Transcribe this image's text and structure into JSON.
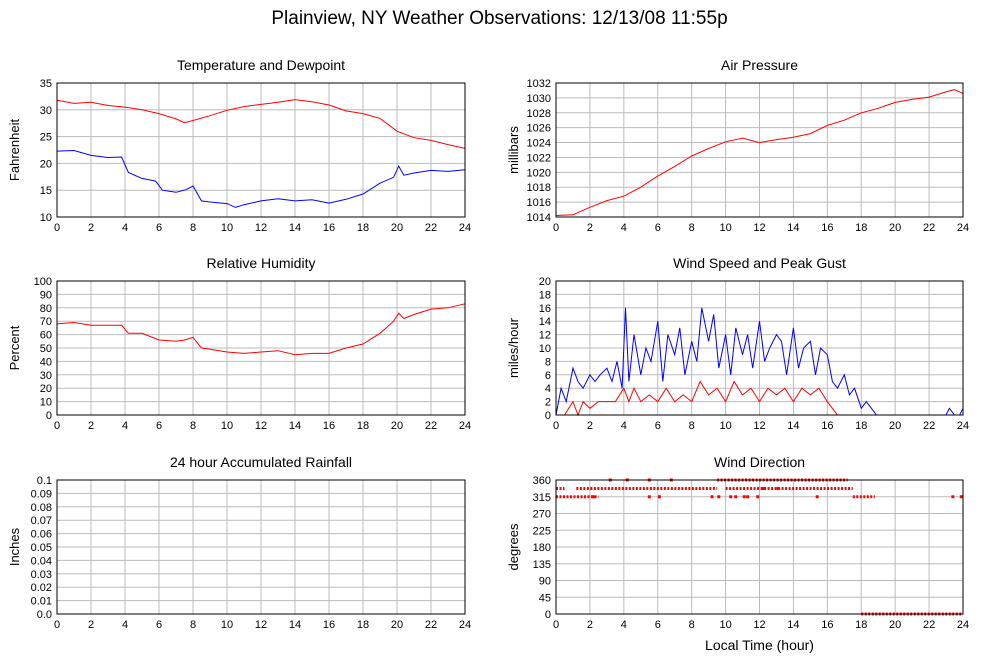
{
  "page": {
    "title": "Plainview, NY Weather Observations: 12/13/08 11:55p",
    "xlabel": "Local Time (hour)"
  },
  "chart_data": [
    {
      "id": "temp",
      "type": "line",
      "title": "Temperature and Dewpoint",
      "ylabel": "Fahrenheit",
      "xlim": [
        0,
        24
      ],
      "ylim": [
        10,
        35
      ],
      "xticks": [
        0,
        2,
        4,
        6,
        8,
        10,
        12,
        14,
        16,
        18,
        20,
        22,
        24
      ],
      "yticks": [
        10,
        15,
        20,
        25,
        30,
        35
      ],
      "ytick_labels": [
        "10",
        "15",
        "20",
        "25",
        "30",
        "35"
      ],
      "series": [
        {
          "color": "#ff0000",
          "x": [
            0,
            1,
            2,
            3,
            4,
            5,
            6,
            7,
            7.5,
            8,
            9,
            10,
            11,
            12,
            13,
            14,
            15,
            16,
            17,
            18,
            19,
            20,
            21,
            22,
            23,
            24
          ],
          "y": [
            31.8,
            31.2,
            31.4,
            30.8,
            30.5,
            30,
            29.3,
            28.3,
            27.6,
            28,
            28.9,
            29.9,
            30.6,
            31,
            31.4,
            31.9,
            31.5,
            30.9,
            29.8,
            29.3,
            28.4,
            26,
            24.8,
            24.3,
            23.5,
            22.8
          ]
        },
        {
          "color": "#0000ff",
          "x": [
            0,
            1,
            2,
            3,
            3.8,
            4.2,
            5,
            5.8,
            6.2,
            7,
            7.6,
            8,
            8.5,
            9,
            10,
            10.5,
            11,
            12,
            13,
            14,
            15,
            16,
            17,
            18,
            19,
            19.8,
            20.1,
            20.4,
            21,
            22,
            23,
            24
          ],
          "y": [
            22.3,
            22.4,
            21.5,
            21.1,
            21.2,
            18.3,
            17.2,
            16.7,
            15,
            14.6,
            15.1,
            15.8,
            13,
            12.8,
            12.5,
            11.8,
            12.3,
            13,
            13.4,
            13,
            13.2,
            12.6,
            13.3,
            14.3,
            16.3,
            17.4,
            19.5,
            17.8,
            18.2,
            18.7,
            18.5,
            18.8
          ]
        }
      ]
    },
    {
      "id": "pressure",
      "type": "line",
      "title": "Air Pressure",
      "ylabel": "millibars",
      "xlim": [
        0,
        24
      ],
      "ylim": [
        1014,
        1032
      ],
      "xticks": [
        0,
        2,
        4,
        6,
        8,
        10,
        12,
        14,
        16,
        18,
        20,
        22,
        24
      ],
      "yticks": [
        1014,
        1016,
        1018,
        1020,
        1022,
        1024,
        1026,
        1028,
        1030,
        1032
      ],
      "ytick_labels": [
        "1014",
        "1016",
        "1018",
        "1020",
        "1022",
        "1024",
        "1026",
        "1028",
        "1030",
        "1032"
      ],
      "series": [
        {
          "color": "#ff0000",
          "x": [
            0,
            1,
            2,
            3,
            4,
            5,
            6,
            7,
            8,
            9,
            10,
            11,
            12,
            13,
            14,
            15,
            16,
            17,
            18,
            19,
            20,
            21,
            22,
            23,
            23.5,
            24
          ],
          "y": [
            1014.2,
            1014.3,
            1015.3,
            1016.2,
            1016.8,
            1018,
            1019.5,
            1020.8,
            1022.2,
            1023.2,
            1024.1,
            1024.6,
            1024,
            1024.4,
            1024.7,
            1025.2,
            1026.3,
            1027,
            1028,
            1028.6,
            1029.4,
            1029.8,
            1030.1,
            1030.8,
            1031.1,
            1030.6
          ]
        }
      ]
    },
    {
      "id": "humidity",
      "type": "line",
      "title": "Relative Humidity",
      "ylabel": "Percent",
      "xlim": [
        0,
        24
      ],
      "ylim": [
        0,
        100
      ],
      "xticks": [
        0,
        2,
        4,
        6,
        8,
        10,
        12,
        14,
        16,
        18,
        20,
        22,
        24
      ],
      "yticks": [
        0,
        10,
        20,
        30,
        40,
        50,
        60,
        70,
        80,
        90,
        100
      ],
      "ytick_labels": [
        "0",
        "10",
        "20",
        "30",
        "40",
        "50",
        "60",
        "70",
        "80",
        "90",
        "100"
      ],
      "series": [
        {
          "color": "#ff0000",
          "x": [
            0,
            1,
            2,
            3,
            3.8,
            4.2,
            5,
            6,
            7,
            7.5,
            8,
            8.5,
            9,
            10,
            11,
            12,
            13,
            14,
            15,
            16,
            17,
            18,
            19,
            19.8,
            20.1,
            20.4,
            21,
            22,
            23,
            24
          ],
          "y": [
            68,
            69,
            67,
            67,
            67,
            61,
            61,
            56,
            55,
            56,
            58,
            50,
            49,
            47,
            46,
            47,
            48,
            45,
            46,
            46,
            50,
            53,
            61,
            70,
            76,
            72,
            75,
            79,
            80,
            83
          ]
        }
      ]
    },
    {
      "id": "wind",
      "type": "line",
      "title": "Wind Speed and Peak Gust",
      "ylabel": "miles/hour",
      "xlim": [
        0,
        24
      ],
      "ylim": [
        0,
        20
      ],
      "xticks": [
        0,
        2,
        4,
        6,
        8,
        10,
        12,
        14,
        16,
        18,
        20,
        22,
        24
      ],
      "yticks": [
        0,
        2,
        4,
        6,
        8,
        10,
        12,
        14,
        16,
        18,
        20
      ],
      "ytick_labels": [
        "0",
        "2",
        "4",
        "6",
        "8",
        "10",
        "12",
        "14",
        "16",
        "18",
        "20"
      ],
      "series": [
        {
          "color": "#0000ff",
          "x": [
            0,
            0.3,
            0.6,
            1,
            1.3,
            1.6,
            2,
            2.3,
            2.6,
            3,
            3.3,
            3.6,
            3.9,
            4.1,
            4.3,
            4.6,
            5,
            5.3,
            5.6,
            6,
            6.3,
            6.6,
            7,
            7.3,
            7.6,
            8,
            8.3,
            8.6,
            9,
            9.3,
            9.6,
            10,
            10.3,
            10.6,
            11,
            11.3,
            11.6,
            12,
            12.3,
            12.6,
            13,
            13.3,
            13.6,
            14,
            14.3,
            14.6,
            15,
            15.3,
            15.6,
            16,
            16.3,
            16.6,
            17,
            17.3,
            17.6,
            18,
            18.3,
            18.6,
            18.9,
            19.5,
            20,
            21,
            22,
            23,
            23.2,
            23.5,
            23.8,
            24
          ],
          "y": [
            0,
            4,
            2,
            7,
            5,
            4,
            6,
            5,
            6,
            7,
            5,
            8,
            4,
            16,
            5,
            12,
            6,
            10,
            8,
            14,
            5,
            12,
            9,
            13,
            6,
            11,
            8,
            16,
            11,
            15,
            7,
            12,
            6,
            13,
            9,
            12,
            7,
            14,
            8,
            10,
            12,
            11,
            6,
            13,
            7,
            10,
            11,
            6,
            10,
            9,
            5,
            4,
            6,
            3,
            4,
            1,
            2,
            1,
            0,
            0,
            0,
            0,
            0,
            0,
            1,
            0,
            0,
            1
          ]
        },
        {
          "color": "#ff0000",
          "x": [
            0,
            0.5,
            1,
            1.3,
            1.6,
            2,
            2.5,
            3,
            3.5,
            4,
            4.3,
            4.6,
            5,
            5.5,
            6,
            6.5,
            7,
            7.5,
            8,
            8.5,
            9,
            9.5,
            10,
            10.5,
            11,
            11.5,
            12,
            12.5,
            13,
            13.5,
            14,
            14.5,
            15,
            15.5,
            16,
            16.3,
            16.6,
            17
          ],
          "y": [
            0,
            0,
            2,
            0,
            2,
            1,
            2,
            2,
            2,
            4,
            2,
            4,
            2,
            3,
            2,
            4,
            2,
            3,
            2,
            5,
            3,
            4,
            2,
            5,
            3,
            4,
            2,
            4,
            3,
            4,
            2,
            4,
            3,
            4,
            2,
            1,
            0,
            0
          ]
        }
      ]
    },
    {
      "id": "rain",
      "type": "line",
      "title": "24 hour Accumulated Rainfall",
      "ylabel": "Inches",
      "xlim": [
        0,
        24
      ],
      "ylim": [
        0,
        0.1
      ],
      "xticks": [
        0,
        2,
        4,
        6,
        8,
        10,
        12,
        14,
        16,
        18,
        20,
        22,
        24
      ],
      "yticks": [
        0,
        0.01,
        0.02,
        0.03,
        0.04,
        0.05,
        0.06,
        0.07,
        0.08,
        0.09,
        0.1
      ],
      "ytick_labels": [
        "0.0",
        "0.01",
        "0.02",
        "0.03",
        "0.04",
        "0.05",
        "0.06",
        "0.07",
        "0.08",
        "0.09",
        "0.1"
      ],
      "series": [
        {
          "color": "#ff0000",
          "x": [
            0,
            24
          ],
          "y": [
            0,
            0
          ]
        }
      ]
    },
    {
      "id": "direction",
      "type": "scatter",
      "title": "Wind Direction",
      "ylabel": "degrees",
      "xlim": [
        0,
        24
      ],
      "ylim": [
        0,
        360
      ],
      "xticks": [
        0,
        2,
        4,
        6,
        8,
        10,
        12,
        14,
        16,
        18,
        20,
        22,
        24
      ],
      "yticks": [
        0,
        45,
        90,
        135,
        180,
        225,
        270,
        315,
        360
      ],
      "ytick_labels": [
        "0",
        "45",
        "90",
        "135",
        "180",
        "225",
        "270",
        "315",
        "360"
      ],
      "series": [
        {
          "color": "#ff0000",
          "segments": [
            {
              "x0": 0,
              "x1": 2.5,
              "y": 315
            },
            {
              "x0": 0,
              "x1": 0.5,
              "y": 337
            },
            {
              "x0": 1.2,
              "x1": 9.5,
              "y": 337
            },
            {
              "x0": 9.5,
              "x1": 17.2,
              "y": 360
            },
            {
              "x0": 10,
              "x1": 17.5,
              "y": 337
            },
            {
              "x0": 17.5,
              "x1": 18.8,
              "y": 315
            },
            {
              "x0": 18.0,
              "x1": 24,
              "y": 0
            }
          ],
          "x": [
            3.2,
            4.2,
            5.5,
            6.8,
            9.6,
            10.6,
            11.3,
            12.2,
            13.1,
            2.2,
            5.5,
            6.1,
            9.2,
            10.3,
            11.1,
            11.9,
            15.4,
            23.4,
            23.9
          ],
          "y": [
            360,
            360,
            360,
            360,
            315,
            315,
            315,
            337,
            337,
            315,
            315,
            315,
            315,
            315,
            315,
            315,
            315,
            315,
            315
          ]
        }
      ]
    }
  ]
}
